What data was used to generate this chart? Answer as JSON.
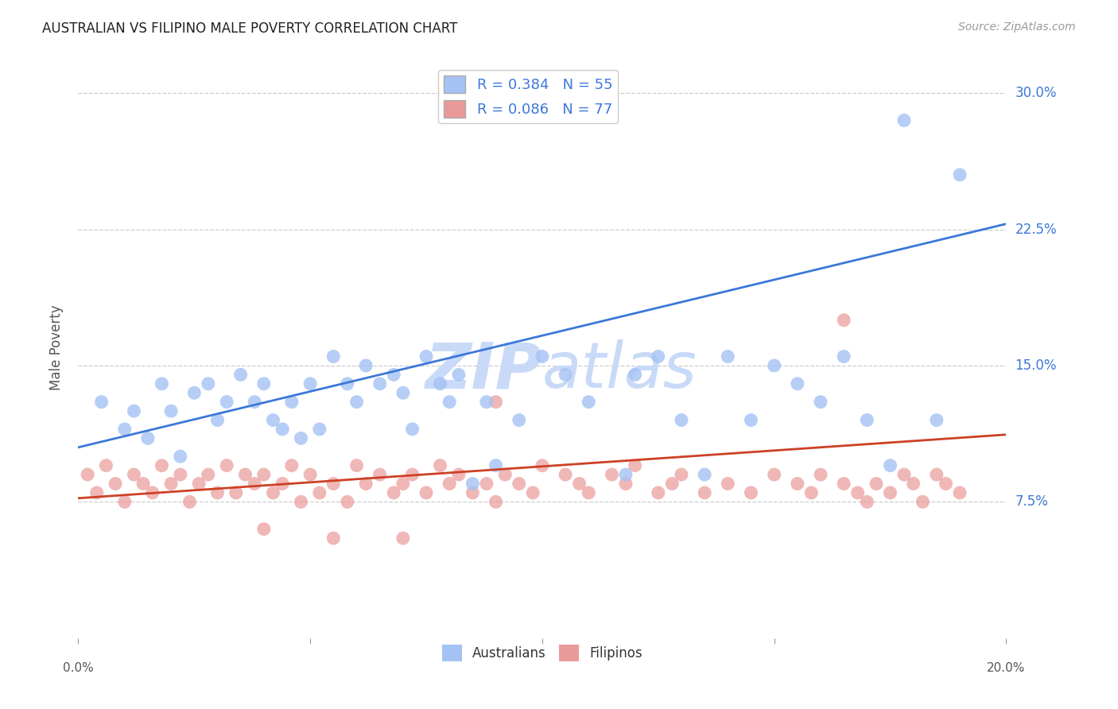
{
  "title": "AUSTRALIAN VS FILIPINO MALE POVERTY CORRELATION CHART",
  "source": "Source: ZipAtlas.com",
  "ylabel": "Male Poverty",
  "y_tick_labels": [
    "7.5%",
    "15.0%",
    "22.5%",
    "30.0%"
  ],
  "y_tick_values": [
    0.075,
    0.15,
    0.225,
    0.3
  ],
  "x_range": [
    0.0,
    0.2
  ],
  "y_range": [
    0.0,
    0.32
  ],
  "australian_R": 0.384,
  "australian_N": 55,
  "filipino_R": 0.086,
  "filipino_N": 77,
  "australian_color": "#a4c2f4",
  "filipino_color": "#ea9999",
  "trend_aus_color": "#3c78d8",
  "trend_fil_color": "#cc4125",
  "label_color": "#3c78d8",
  "watermark_color": "#c9daf8",
  "background_color": "#ffffff",
  "grid_color": "#cccccc",
  "aus_trend_x0": 0.0,
  "aus_trend_y0": 0.105,
  "aus_trend_x1": 0.2,
  "aus_trend_y1": 0.228,
  "fil_trend_x0": 0.0,
  "fil_trend_y0": 0.077,
  "fil_trend_x1": 0.2,
  "fil_trend_y1": 0.112,
  "aus_x": [
    0.005,
    0.01,
    0.012,
    0.015,
    0.018,
    0.02,
    0.022,
    0.025,
    0.028,
    0.03,
    0.032,
    0.035,
    0.038,
    0.04,
    0.042,
    0.044,
    0.046,
    0.048,
    0.05,
    0.052,
    0.055,
    0.058,
    0.06,
    0.062,
    0.065,
    0.068,
    0.07,
    0.072,
    0.075,
    0.078,
    0.08,
    0.082,
    0.085,
    0.088,
    0.09,
    0.095,
    0.1,
    0.105,
    0.11,
    0.118,
    0.12,
    0.125,
    0.13,
    0.135,
    0.14,
    0.145,
    0.15,
    0.155,
    0.16,
    0.165,
    0.17,
    0.175,
    0.178,
    0.185,
    0.19
  ],
  "aus_y": [
    0.13,
    0.115,
    0.125,
    0.11,
    0.14,
    0.125,
    0.1,
    0.135,
    0.14,
    0.12,
    0.13,
    0.145,
    0.13,
    0.14,
    0.12,
    0.115,
    0.13,
    0.11,
    0.14,
    0.115,
    0.155,
    0.14,
    0.13,
    0.15,
    0.14,
    0.145,
    0.135,
    0.115,
    0.155,
    0.14,
    0.13,
    0.145,
    0.085,
    0.13,
    0.095,
    0.12,
    0.155,
    0.145,
    0.13,
    0.09,
    0.145,
    0.155,
    0.12,
    0.09,
    0.155,
    0.12,
    0.15,
    0.14,
    0.13,
    0.155,
    0.12,
    0.095,
    0.285,
    0.12,
    0.255
  ],
  "fil_x": [
    0.002,
    0.004,
    0.006,
    0.008,
    0.01,
    0.012,
    0.014,
    0.016,
    0.018,
    0.02,
    0.022,
    0.024,
    0.026,
    0.028,
    0.03,
    0.032,
    0.034,
    0.036,
    0.038,
    0.04,
    0.042,
    0.044,
    0.046,
    0.048,
    0.05,
    0.052,
    0.055,
    0.058,
    0.06,
    0.062,
    0.065,
    0.068,
    0.07,
    0.072,
    0.075,
    0.078,
    0.08,
    0.082,
    0.085,
    0.088,
    0.09,
    0.092,
    0.095,
    0.098,
    0.1,
    0.105,
    0.108,
    0.11,
    0.115,
    0.118,
    0.12,
    0.125,
    0.128,
    0.13,
    0.135,
    0.14,
    0.145,
    0.15,
    0.155,
    0.158,
    0.16,
    0.165,
    0.168,
    0.17,
    0.172,
    0.175,
    0.178,
    0.18,
    0.182,
    0.185,
    0.187,
    0.19,
    0.165,
    0.04,
    0.055,
    0.07,
    0.09
  ],
  "fil_y": [
    0.09,
    0.08,
    0.095,
    0.085,
    0.075,
    0.09,
    0.085,
    0.08,
    0.095,
    0.085,
    0.09,
    0.075,
    0.085,
    0.09,
    0.08,
    0.095,
    0.08,
    0.09,
    0.085,
    0.09,
    0.08,
    0.085,
    0.095,
    0.075,
    0.09,
    0.08,
    0.085,
    0.075,
    0.095,
    0.085,
    0.09,
    0.08,
    0.085,
    0.09,
    0.08,
    0.095,
    0.085,
    0.09,
    0.08,
    0.085,
    0.075,
    0.09,
    0.085,
    0.08,
    0.095,
    0.09,
    0.085,
    0.08,
    0.09,
    0.085,
    0.095,
    0.08,
    0.085,
    0.09,
    0.08,
    0.085,
    0.08,
    0.09,
    0.085,
    0.08,
    0.09,
    0.085,
    0.08,
    0.075,
    0.085,
    0.08,
    0.09,
    0.085,
    0.075,
    0.09,
    0.085,
    0.08,
    0.175,
    0.06,
    0.055,
    0.055,
    0.13
  ]
}
